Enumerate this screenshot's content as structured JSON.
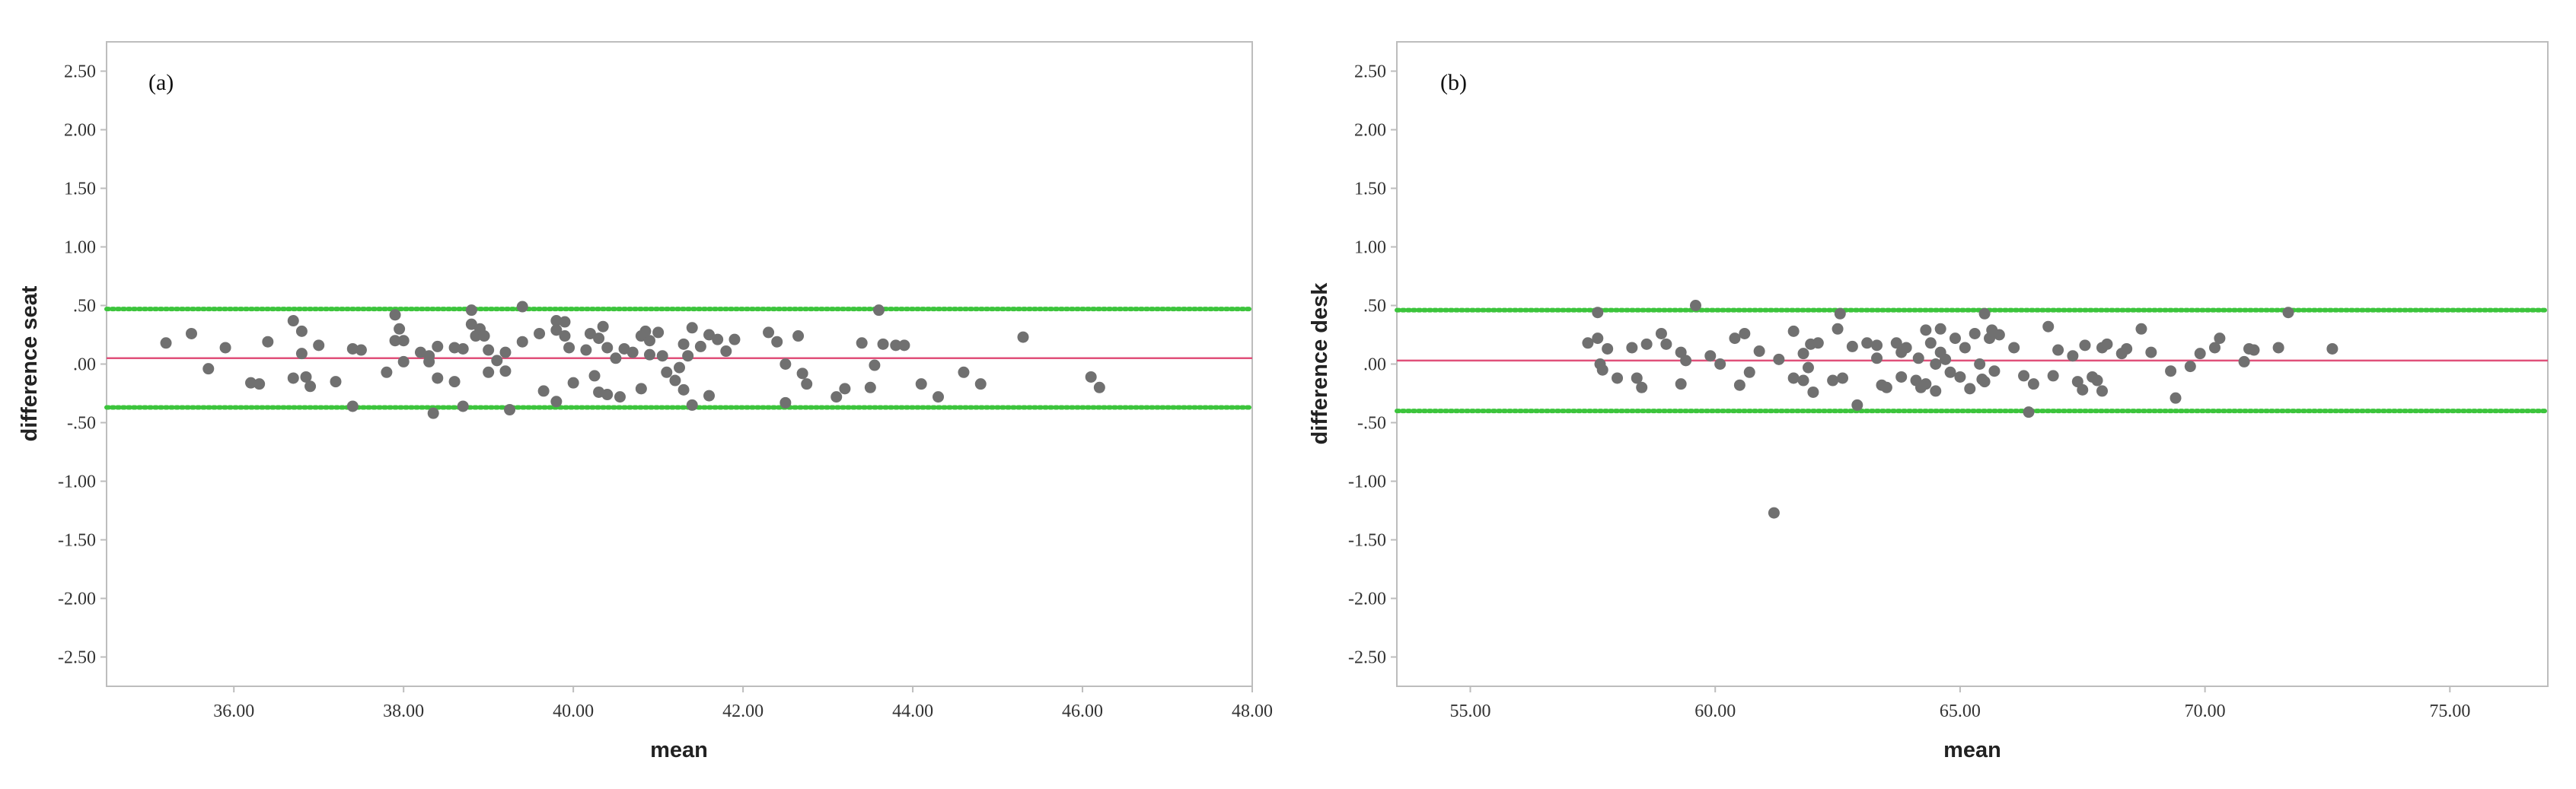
{
  "chart_data": [
    {
      "type": "scatter",
      "panel_label": "(a)",
      "xlabel": "mean",
      "ylabel": "difference seat",
      "xlim": [
        34.5,
        48.0
      ],
      "ylim": [
        -2.75,
        2.75
      ],
      "xticks": [
        "36.00",
        "38.00",
        "40.00",
        "42.00",
        "44.00",
        "46.00",
        "48.00"
      ],
      "xtick_values": [
        36,
        38,
        40,
        42,
        44,
        46,
        48
      ],
      "yticks": [
        "2.50",
        "2.00",
        "1.50",
        "1.00",
        ".50",
        ".00",
        "-.50",
        "-1.00",
        "-1.50",
        "-2.00",
        "-2.50"
      ],
      "ytick_values": [
        2.5,
        2.0,
        1.5,
        1.0,
        0.5,
        0.0,
        -0.5,
        -1.0,
        -1.5,
        -2.0,
        -2.5
      ],
      "mean_line": 0.05,
      "upper_limit": 0.47,
      "lower_limit": -0.37,
      "colors": {
        "points": "#707070",
        "mean_line": "#e0507a",
        "limits": "#3cc43c"
      },
      "points": [
        [
          35.2,
          0.18
        ],
        [
          35.5,
          0.26
        ],
        [
          35.7,
          -0.04
        ],
        [
          35.9,
          0.14
        ],
        [
          36.2,
          -0.16
        ],
        [
          36.3,
          -0.17
        ],
        [
          36.4,
          0.19
        ],
        [
          36.7,
          0.37
        ],
        [
          36.7,
          -0.12
        ],
        [
          36.8,
          0.28
        ],
        [
          36.8,
          0.09
        ],
        [
          36.85,
          -0.11
        ],
        [
          36.9,
          -0.19
        ],
        [
          37.0,
          0.16
        ],
        [
          37.2,
          -0.15
        ],
        [
          37.4,
          0.13
        ],
        [
          37.4,
          -0.36
        ],
        [
          37.5,
          0.12
        ],
        [
          37.8,
          -0.07
        ],
        [
          37.9,
          0.42
        ],
        [
          37.9,
          0.2
        ],
        [
          37.95,
          0.3
        ],
        [
          38.0,
          0.2
        ],
        [
          38.0,
          0.02
        ],
        [
          38.2,
          0.1
        ],
        [
          38.3,
          0.07
        ],
        [
          38.3,
          0.02
        ],
        [
          38.35,
          -0.42
        ],
        [
          38.4,
          0.15
        ],
        [
          38.4,
          -0.12
        ],
        [
          38.6,
          0.14
        ],
        [
          38.6,
          -0.15
        ],
        [
          38.7,
          0.13
        ],
        [
          38.7,
          -0.36
        ],
        [
          38.8,
          0.46
        ],
        [
          38.8,
          0.34
        ],
        [
          38.85,
          0.24
        ],
        [
          38.9,
          0.3
        ],
        [
          38.95,
          0.24
        ],
        [
          39.0,
          0.12
        ],
        [
          39.0,
          -0.07
        ],
        [
          39.1,
          0.03
        ],
        [
          39.2,
          0.1
        ],
        [
          39.2,
          -0.06
        ],
        [
          39.25,
          -0.39
        ],
        [
          39.4,
          0.49
        ],
        [
          39.4,
          0.19
        ],
        [
          39.6,
          0.26
        ],
        [
          39.65,
          -0.23
        ],
        [
          39.8,
          0.37
        ],
        [
          39.8,
          0.29
        ],
        [
          39.8,
          -0.32
        ],
        [
          39.9,
          0.36
        ],
        [
          39.9,
          0.24
        ],
        [
          39.95,
          0.14
        ],
        [
          40.0,
          -0.16
        ],
        [
          40.15,
          0.12
        ],
        [
          40.2,
          0.26
        ],
        [
          40.25,
          -0.1
        ],
        [
          40.3,
          0.22
        ],
        [
          40.3,
          -0.24
        ],
        [
          40.35,
          0.32
        ],
        [
          40.4,
          0.14
        ],
        [
          40.4,
          -0.26
        ],
        [
          40.5,
          0.05
        ],
        [
          40.55,
          -0.28
        ],
        [
          40.6,
          0.13
        ],
        [
          40.7,
          0.1
        ],
        [
          40.8,
          0.24
        ],
        [
          40.8,
          -0.21
        ],
        [
          40.85,
          0.28
        ],
        [
          40.9,
          0.2
        ],
        [
          40.9,
          0.08
        ],
        [
          41.0,
          0.27
        ],
        [
          41.05,
          0.07
        ],
        [
          41.1,
          -0.07
        ],
        [
          41.2,
          -0.14
        ],
        [
          41.25,
          -0.03
        ],
        [
          41.3,
          0.17
        ],
        [
          41.3,
          -0.22
        ],
        [
          41.35,
          0.07
        ],
        [
          41.4,
          -0.35
        ],
        [
          41.4,
          0.31
        ],
        [
          41.5,
          0.15
        ],
        [
          41.6,
          0.25
        ],
        [
          41.6,
          -0.27
        ],
        [
          41.7,
          0.21
        ],
        [
          41.8,
          0.11
        ],
        [
          41.9,
          0.21
        ],
        [
          42.3,
          0.27
        ],
        [
          42.4,
          0.19
        ],
        [
          42.5,
          -0.33
        ],
        [
          42.5,
          0.0
        ],
        [
          42.65,
          0.24
        ],
        [
          42.7,
          -0.08
        ],
        [
          42.75,
          -0.17
        ],
        [
          43.1,
          -0.28
        ],
        [
          43.2,
          -0.21
        ],
        [
          43.4,
          0.18
        ],
        [
          43.5,
          -0.2
        ],
        [
          43.55,
          -0.01
        ],
        [
          43.6,
          0.46
        ],
        [
          43.65,
          0.17
        ],
        [
          43.8,
          0.16
        ],
        [
          43.9,
          0.16
        ],
        [
          44.1,
          -0.17
        ],
        [
          44.3,
          -0.28
        ],
        [
          44.6,
          -0.07
        ],
        [
          44.8,
          -0.17
        ],
        [
          45.3,
          0.23
        ],
        [
          46.1,
          -0.11
        ],
        [
          46.2,
          -0.2
        ]
      ]
    },
    {
      "type": "scatter",
      "panel_label": "(b)",
      "xlabel": "mean",
      "ylabel": "difference desk",
      "xlim": [
        53.5,
        77.0
      ],
      "ylim": [
        -2.75,
        2.75
      ],
      "xticks": [
        "55.00",
        "60.00",
        "65.00",
        "70.00",
        "75.00"
      ],
      "xtick_values": [
        55,
        60,
        65,
        70,
        75
      ],
      "yticks": [
        "2.50",
        "2.00",
        "1.50",
        "1.00",
        ".50",
        ".00",
        "-.50",
        "-1.00",
        "-1.50",
        "-2.00",
        "-2.50"
      ],
      "ytick_values": [
        2.5,
        2.0,
        1.5,
        1.0,
        0.5,
        0.0,
        -0.5,
        -1.0,
        -1.5,
        -2.0,
        -2.5
      ],
      "mean_line": 0.03,
      "upper_limit": 0.46,
      "lower_limit": -0.4,
      "colors": {
        "points": "#707070",
        "mean_line": "#e0507a",
        "limits": "#3cc43c"
      },
      "points": [
        [
          57.4,
          0.18
        ],
        [
          57.6,
          0.44
        ],
        [
          57.6,
          0.22
        ],
        [
          57.65,
          0.0
        ],
        [
          57.7,
          -0.05
        ],
        [
          57.8,
          0.13
        ],
        [
          58.0,
          -0.12
        ],
        [
          58.3,
          0.14
        ],
        [
          58.4,
          -0.12
        ],
        [
          58.5,
          -0.2
        ],
        [
          58.6,
          0.17
        ],
        [
          58.9,
          0.26
        ],
        [
          59.0,
          0.17
        ],
        [
          59.3,
          -0.17
        ],
        [
          59.3,
          0.1
        ],
        [
          59.4,
          0.03
        ],
        [
          59.6,
          0.5
        ],
        [
          59.9,
          0.07
        ],
        [
          60.1,
          0.0
        ],
        [
          60.4,
          0.22
        ],
        [
          60.5,
          -0.18
        ],
        [
          60.6,
          0.26
        ],
        [
          60.7,
          -0.07
        ],
        [
          60.9,
          0.11
        ],
        [
          61.2,
          -1.27
        ],
        [
          61.3,
          0.04
        ],
        [
          61.6,
          0.28
        ],
        [
          61.6,
          -0.12
        ],
        [
          61.8,
          -0.14
        ],
        [
          61.8,
          0.09
        ],
        [
          61.9,
          -0.03
        ],
        [
          61.95,
          0.17
        ],
        [
          62.0,
          -0.24
        ],
        [
          62.1,
          0.18
        ],
        [
          62.4,
          -0.14
        ],
        [
          62.5,
          0.3
        ],
        [
          62.55,
          0.43
        ],
        [
          62.6,
          -0.12
        ],
        [
          62.8,
          0.15
        ],
        [
          62.9,
          -0.35
        ],
        [
          63.1,
          0.18
        ],
        [
          63.3,
          0.16
        ],
        [
          63.3,
          0.05
        ],
        [
          63.4,
          -0.18
        ],
        [
          63.5,
          -0.2
        ],
        [
          63.7,
          0.18
        ],
        [
          63.8,
          0.1
        ],
        [
          63.8,
          -0.11
        ],
        [
          63.9,
          0.14
        ],
        [
          64.1,
          -0.14
        ],
        [
          64.15,
          0.05
        ],
        [
          64.2,
          -0.2
        ],
        [
          64.3,
          0.29
        ],
        [
          64.3,
          -0.17
        ],
        [
          64.4,
          0.18
        ],
        [
          64.5,
          0.0
        ],
        [
          64.5,
          -0.23
        ],
        [
          64.6,
          0.3
        ],
        [
          64.6,
          0.1
        ],
        [
          64.7,
          0.04
        ],
        [
          64.8,
          -0.07
        ],
        [
          64.9,
          0.22
        ],
        [
          65.0,
          -0.11
        ],
        [
          65.1,
          0.14
        ],
        [
          65.2,
          -0.21
        ],
        [
          65.3,
          0.26
        ],
        [
          65.4,
          0.0
        ],
        [
          65.45,
          -0.13
        ],
        [
          65.5,
          0.43
        ],
        [
          65.5,
          -0.15
        ],
        [
          65.6,
          0.22
        ],
        [
          65.65,
          0.29
        ],
        [
          65.7,
          -0.06
        ],
        [
          65.8,
          0.25
        ],
        [
          66.1,
          0.14
        ],
        [
          66.3,
          -0.1
        ],
        [
          66.4,
          -0.41
        ],
        [
          66.5,
          -0.17
        ],
        [
          66.8,
          0.32
        ],
        [
          66.9,
          -0.1
        ],
        [
          67.0,
          0.12
        ],
        [
          67.3,
          0.07
        ],
        [
          67.4,
          -0.15
        ],
        [
          67.5,
          -0.22
        ],
        [
          67.55,
          0.16
        ],
        [
          67.7,
          -0.11
        ],
        [
          67.8,
          -0.14
        ],
        [
          67.9,
          -0.23
        ],
        [
          67.9,
          0.14
        ],
        [
          68.0,
          0.17
        ],
        [
          68.3,
          0.09
        ],
        [
          68.4,
          0.13
        ],
        [
          68.7,
          0.3
        ],
        [
          68.9,
          0.1
        ],
        [
          69.3,
          -0.06
        ],
        [
          69.4,
          -0.29
        ],
        [
          69.7,
          -0.02
        ],
        [
          69.9,
          0.09
        ],
        [
          70.2,
          0.14
        ],
        [
          70.3,
          0.22
        ],
        [
          70.8,
          0.02
        ],
        [
          70.9,
          0.13
        ],
        [
          71.0,
          0.12
        ],
        [
          71.5,
          0.14
        ],
        [
          71.7,
          0.44
        ],
        [
          72.6,
          0.13
        ]
      ]
    }
  ]
}
